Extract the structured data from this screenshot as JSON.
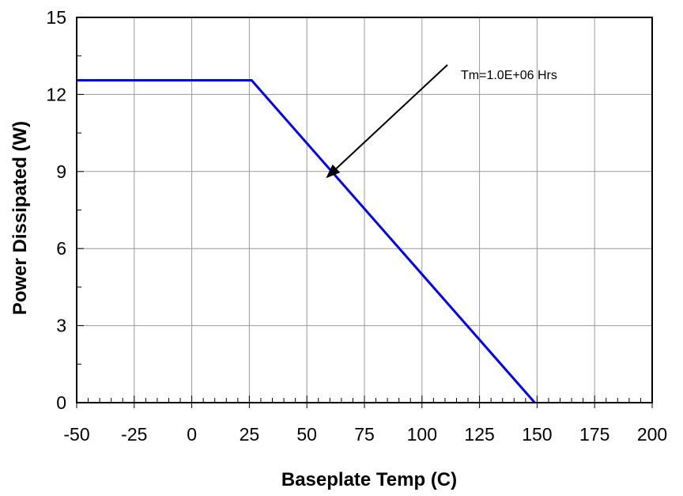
{
  "chart_data": {
    "type": "line",
    "title": "",
    "xlabel": "Baseplate Temp (C)",
    "ylabel": "Power Dissipated (W)",
    "xlim": [
      -50,
      200
    ],
    "ylim": [
      0,
      15
    ],
    "xticks": [
      -50,
      -25,
      0,
      25,
      50,
      75,
      100,
      125,
      150,
      175,
      200
    ],
    "yticks": [
      0,
      3,
      6,
      9,
      12,
      15
    ],
    "xtick_labels": [
      "-50",
      "-25",
      "0",
      "25",
      "50",
      "75",
      "100",
      "125",
      "150",
      "175",
      "200"
    ],
    "ytick_labels": [
      "0",
      "3",
      "6",
      "9",
      "12",
      "15"
    ],
    "grid": true,
    "legend": "none",
    "series": [
      {
        "color": "#0000ff",
        "x": [
          -50,
          26,
          149
        ],
        "y": [
          12.55,
          12.55,
          0
        ]
      }
    ],
    "annotations": [
      {
        "text": "Tm=1.0E+06 Hrs",
        "points_to": {
          "x": 60,
          "y": 8.8
        }
      }
    ]
  },
  "colors": {
    "line": "#0000ff",
    "grid": "#999999",
    "frame": "#000000"
  }
}
